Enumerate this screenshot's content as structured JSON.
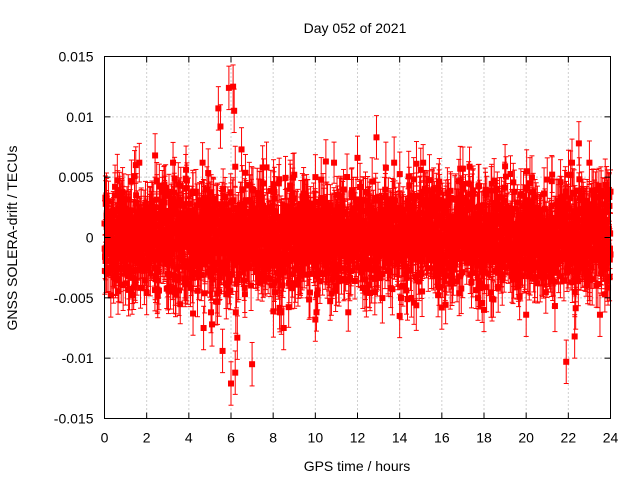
{
  "chart_data": {
    "type": "scatter",
    "title": "Day 052 of 2021",
    "xlabel": "GPS time / hours",
    "ylabel": "GNSS SOLERA-drift / TECUs",
    "xlim": [
      0,
      24
    ],
    "ylim": [
      -0.015,
      0.015
    ],
    "x_ticks": [
      "0",
      "2",
      "4",
      "6",
      "8",
      "10",
      "12",
      "14",
      "16",
      "18",
      "20",
      "22",
      "24"
    ],
    "y_ticks": [
      "-0.015",
      "-0.01",
      "-0.005",
      "0",
      "0.005",
      "0.01",
      "0.015"
    ],
    "grid": true,
    "legend": "none",
    "error_bars": true,
    "color": "#ff0000",
    "series": [
      {
        "points": [
          {
            "x": 0.1,
            "y": 0.0031
          },
          {
            "x": 0.3,
            "y": -0.0048
          },
          {
            "x": 0.5,
            "y": 0.0042
          },
          {
            "x": 1.0,
            "y": -0.0038
          },
          {
            "x": 1.5,
            "y": 0.0035
          },
          {
            "x": 2.0,
            "y": -0.0046
          },
          {
            "x": 2.4,
            "y": 0.0068
          },
          {
            "x": 3.0,
            "y": -0.0042
          },
          {
            "x": 3.5,
            "y": 0.0044
          },
          {
            "x": 4.2,
            "y": -0.0063
          },
          {
            "x": 4.7,
            "y": -0.0075
          },
          {
            "x": 5.1,
            "y": -0.0072
          },
          {
            "x": 5.4,
            "y": 0.0107
          },
          {
            "x": 5.5,
            "y": 0.0092
          },
          {
            "x": 5.6,
            "y": -0.0094
          },
          {
            "x": 5.9,
            "y": 0.0124
          },
          {
            "x": 6.0,
            "y": -0.0121
          },
          {
            "x": 6.1,
            "y": 0.0125
          },
          {
            "x": 6.15,
            "y": 0.0105
          },
          {
            "x": 6.2,
            "y": -0.0112
          },
          {
            "x": 6.3,
            "y": -0.0083
          },
          {
            "x": 6.5,
            "y": 0.0073
          },
          {
            "x": 7.0,
            "y": -0.0105
          },
          {
            "x": 7.5,
            "y": 0.0058
          },
          {
            "x": 8.5,
            "y": -0.0075
          },
          {
            "x": 9.0,
            "y": 0.0052
          },
          {
            "x": 10.0,
            "y": -0.0068
          },
          {
            "x": 10.5,
            "y": 0.0063
          },
          {
            "x": 12.0,
            "y": 0.0066
          },
          {
            "x": 12.9,
            "y": 0.0083
          },
          {
            "x": 14.0,
            "y": -0.0065
          },
          {
            "x": 15.0,
            "y": 0.0056
          },
          {
            "x": 16.0,
            "y": -0.0058
          },
          {
            "x": 17.0,
            "y": 0.0057
          },
          {
            "x": 18.0,
            "y": -0.006
          },
          {
            "x": 19.0,
            "y": 0.0059
          },
          {
            "x": 20.0,
            "y": -0.0064
          },
          {
            "x": 21.0,
            "y": 0.0048
          },
          {
            "x": 21.9,
            "y": -0.0103
          },
          {
            "x": 22.3,
            "y": -0.0082
          },
          {
            "x": 22.5,
            "y": 0.0078
          },
          {
            "x": 23.0,
            "y": 0.0062
          },
          {
            "x": 23.5,
            "y": -0.0064
          },
          {
            "x": 24.0,
            "y": 0.0038
          }
        ],
        "noise_band": {
          "std": 0.0021,
          "error_bar": 0.0018,
          "points_per_hour": 120
        }
      }
    ]
  }
}
